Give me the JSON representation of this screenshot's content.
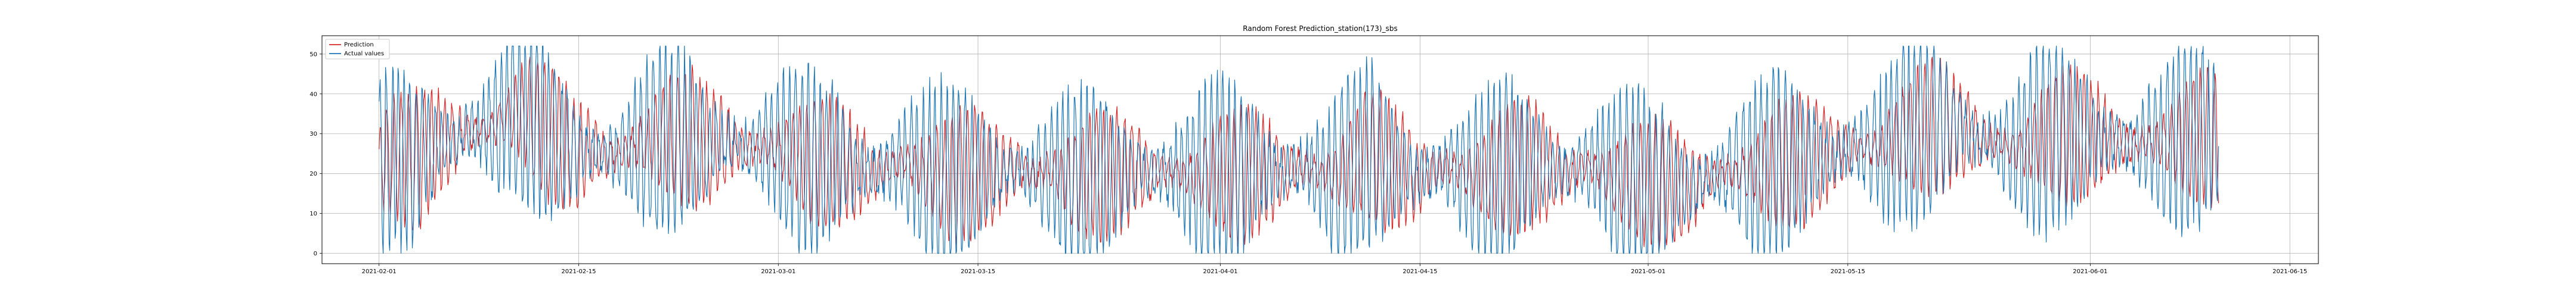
{
  "chart_data": {
    "type": "line",
    "title": "Random Forest Prediction_station(173)_sbs",
    "xlabel": "",
    "ylabel": "",
    "x_range": [
      "2021-01-28",
      "2021-06-17"
    ],
    "ylim": [
      -2.6,
      54.6
    ],
    "grid": true,
    "legend_position": "top-left",
    "x_ticks": [
      "2021-02-01",
      "2021-02-15",
      "2021-03-01",
      "2021-03-15",
      "2021-04-01",
      "2021-04-15",
      "2021-05-01",
      "2021-05-15",
      "2021-06-01",
      "2021-06-15"
    ],
    "y_ticks": [
      0,
      10,
      20,
      30,
      40,
      50
    ],
    "x_start": "2021-02-01",
    "x_end": "2021-06-10",
    "sample_interval_hours": 1,
    "series": [
      {
        "name": "Prediction",
        "color": "#d62728",
        "anchors": [
          [
            0,
            22
          ],
          [
            24,
            25
          ],
          [
            48,
            23
          ],
          [
            72,
            24
          ],
          [
            96,
            27
          ],
          [
            120,
            28
          ],
          [
            144,
            30
          ],
          [
            168,
            31
          ],
          [
            192,
            32
          ],
          [
            216,
            34
          ],
          [
            240,
            36
          ],
          [
            264,
            33
          ],
          [
            288,
            30
          ],
          [
            312,
            27
          ],
          [
            336,
            25
          ],
          [
            360,
            26
          ],
          [
            384,
            24
          ],
          [
            408,
            25
          ],
          [
            432,
            27
          ],
          [
            456,
            28
          ],
          [
            480,
            29
          ],
          [
            504,
            30
          ],
          [
            528,
            29
          ],
          [
            552,
            27
          ],
          [
            576,
            28
          ],
          [
            600,
            27
          ],
          [
            624,
            26
          ],
          [
            648,
            27
          ],
          [
            672,
            26
          ],
          [
            696,
            25
          ],
          [
            720,
            23
          ],
          [
            744,
            22
          ],
          [
            768,
            24
          ],
          [
            792,
            22
          ],
          [
            816,
            21
          ],
          [
            840,
            20
          ],
          [
            864,
            22
          ],
          [
            888,
            23
          ],
          [
            912,
            21
          ],
          [
            936,
            20
          ],
          [
            960,
            19
          ],
          [
            984,
            20
          ],
          [
            1008,
            21
          ],
          [
            1032,
            20
          ],
          [
            1056,
            21
          ],
          [
            1080,
            22
          ],
          [
            1104,
            20
          ],
          [
            1128,
            21
          ],
          [
            1152,
            19
          ],
          [
            1176,
            18
          ],
          [
            1200,
            20
          ],
          [
            1224,
            19
          ],
          [
            1248,
            20
          ],
          [
            1272,
            21
          ],
          [
            1296,
            20
          ],
          [
            1320,
            21
          ],
          [
            1344,
            20
          ],
          [
            1368,
            19
          ],
          [
            1392,
            20
          ],
          [
            1416,
            21
          ],
          [
            1440,
            19
          ],
          [
            1464,
            20
          ],
          [
            1488,
            21
          ],
          [
            1512,
            20
          ],
          [
            1536,
            21
          ],
          [
            1560,
            22
          ],
          [
            1584,
            20
          ],
          [
            1608,
            19
          ],
          [
            1632,
            22
          ],
          [
            1656,
            25
          ],
          [
            1680,
            24
          ],
          [
            1704,
            22
          ],
          [
            1728,
            20
          ],
          [
            1752,
            19
          ],
          [
            1776,
            21
          ],
          [
            1800,
            22
          ],
          [
            1824,
            20
          ],
          [
            1848,
            19
          ],
          [
            1872,
            20
          ],
          [
            1896,
            21
          ],
          [
            1920,
            22
          ],
          [
            1944,
            23
          ],
          [
            1968,
            21
          ],
          [
            1992,
            20
          ],
          [
            2016,
            21
          ],
          [
            2040,
            22
          ],
          [
            2064,
            20
          ],
          [
            2088,
            19
          ],
          [
            2112,
            18
          ],
          [
            2136,
            17
          ],
          [
            2160,
            18
          ],
          [
            2184,
            17
          ],
          [
            2208,
            16
          ],
          [
            2232,
            18
          ],
          [
            2256,
            20
          ],
          [
            2280,
            21
          ],
          [
            2304,
            20
          ],
          [
            2328,
            21
          ],
          [
            2352,
            22
          ],
          [
            2376,
            24
          ],
          [
            2400,
            23
          ],
          [
            2424,
            24
          ],
          [
            2448,
            25
          ],
          [
            2472,
            26
          ],
          [
            2496,
            27
          ],
          [
            2520,
            26
          ],
          [
            2544,
            28
          ],
          [
            2568,
            30
          ],
          [
            2592,
            31
          ],
          [
            2616,
            33
          ],
          [
            2640,
            32
          ],
          [
            2664,
            31
          ],
          [
            2688,
            29
          ],
          [
            2712,
            28
          ],
          [
            2736,
            27
          ],
          [
            2760,
            26
          ],
          [
            2784,
            28
          ],
          [
            2808,
            29
          ],
          [
            2832,
            30
          ],
          [
            2856,
            29
          ],
          [
            2880,
            30
          ],
          [
            2904,
            29
          ],
          [
            2928,
            28
          ],
          [
            2952,
            27
          ],
          [
            2976,
            28
          ],
          [
            3000,
            27
          ],
          [
            3024,
            28
          ],
          [
            3048,
            29
          ],
          [
            3072,
            30
          ],
          [
            3096,
            29
          ],
          [
            3120,
            28
          ],
          [
            3144,
            29
          ],
          [
            3168,
            30
          ],
          [
            3192,
            31
          ],
          [
            3216,
            30
          ],
          [
            3240,
            29
          ],
          [
            3264,
            28
          ],
          [
            3288,
            27
          ]
        ],
        "swing": [
          3,
          17
        ],
        "period_hours": [
          8,
          18
        ]
      },
      {
        "name": "Actual values",
        "color": "#1f77b4",
        "anchors": [
          [
            0,
            22
          ],
          [
            24,
            25
          ],
          [
            48,
            23
          ],
          [
            72,
            24
          ],
          [
            96,
            27
          ],
          [
            120,
            28
          ],
          [
            144,
            30
          ],
          [
            168,
            31
          ],
          [
            192,
            32
          ],
          [
            216,
            34
          ],
          [
            240,
            36
          ],
          [
            264,
            33
          ],
          [
            288,
            30
          ],
          [
            312,
            27
          ],
          [
            336,
            25
          ],
          [
            360,
            26
          ],
          [
            384,
            24
          ],
          [
            408,
            25
          ],
          [
            432,
            27
          ],
          [
            456,
            28
          ],
          [
            480,
            29
          ],
          [
            504,
            30
          ],
          [
            528,
            29
          ],
          [
            552,
            27
          ],
          [
            576,
            28
          ],
          [
            600,
            27
          ],
          [
            624,
            26
          ],
          [
            648,
            27
          ],
          [
            672,
            26
          ],
          [
            696,
            25
          ],
          [
            720,
            23
          ],
          [
            744,
            22
          ],
          [
            768,
            24
          ],
          [
            792,
            22
          ],
          [
            816,
            21
          ],
          [
            840,
            20
          ],
          [
            864,
            22
          ],
          [
            888,
            23
          ],
          [
            912,
            21
          ],
          [
            936,
            20
          ],
          [
            960,
            19
          ],
          [
            984,
            20
          ],
          [
            1008,
            21
          ],
          [
            1032,
            20
          ],
          [
            1056,
            21
          ],
          [
            1080,
            22
          ],
          [
            1104,
            20
          ],
          [
            1128,
            21
          ],
          [
            1152,
            19
          ],
          [
            1176,
            18
          ],
          [
            1200,
            20
          ],
          [
            1224,
            19
          ],
          [
            1248,
            20
          ],
          [
            1272,
            21
          ],
          [
            1296,
            20
          ],
          [
            1320,
            21
          ],
          [
            1344,
            20
          ],
          [
            1368,
            19
          ],
          [
            1392,
            20
          ],
          [
            1416,
            21
          ],
          [
            1440,
            19
          ],
          [
            1464,
            20
          ],
          [
            1488,
            21
          ],
          [
            1512,
            20
          ],
          [
            1536,
            21
          ],
          [
            1560,
            22
          ],
          [
            1584,
            20
          ],
          [
            1608,
            19
          ],
          [
            1632,
            22
          ],
          [
            1656,
            25
          ],
          [
            1680,
            24
          ],
          [
            1704,
            22
          ],
          [
            1728,
            20
          ],
          [
            1752,
            19
          ],
          [
            1776,
            21
          ],
          [
            1800,
            22
          ],
          [
            1824,
            20
          ],
          [
            1848,
            19
          ],
          [
            1872,
            20
          ],
          [
            1896,
            21
          ],
          [
            1920,
            22
          ],
          [
            1944,
            23
          ],
          [
            1968,
            21
          ],
          [
            1992,
            20
          ],
          [
            2016,
            21
          ],
          [
            2040,
            22
          ],
          [
            2064,
            20
          ],
          [
            2088,
            19
          ],
          [
            2112,
            18
          ],
          [
            2136,
            17
          ],
          [
            2160,
            18
          ],
          [
            2184,
            17
          ],
          [
            2208,
            16
          ],
          [
            2232,
            18
          ],
          [
            2256,
            20
          ],
          [
            2280,
            21
          ],
          [
            2304,
            20
          ],
          [
            2328,
            21
          ],
          [
            2352,
            22
          ],
          [
            2376,
            24
          ],
          [
            2400,
            23
          ],
          [
            2424,
            24
          ],
          [
            2448,
            25
          ],
          [
            2472,
            26
          ],
          [
            2496,
            27
          ],
          [
            2520,
            26
          ],
          [
            2544,
            28
          ],
          [
            2568,
            30
          ],
          [
            2592,
            31
          ],
          [
            2616,
            33
          ],
          [
            2640,
            32
          ],
          [
            2664,
            31
          ],
          [
            2688,
            29
          ],
          [
            2712,
            28
          ],
          [
            2736,
            27
          ],
          [
            2760,
            26
          ],
          [
            2784,
            28
          ],
          [
            2808,
            29
          ],
          [
            2832,
            30
          ],
          [
            2856,
            29
          ],
          [
            2880,
            30
          ],
          [
            2904,
            29
          ],
          [
            2928,
            28
          ],
          [
            2952,
            27
          ],
          [
            2976,
            28
          ],
          [
            3000,
            27
          ],
          [
            3024,
            28
          ],
          [
            3048,
            29
          ],
          [
            3072,
            30
          ],
          [
            3096,
            29
          ],
          [
            3120,
            28
          ],
          [
            3144,
            29
          ],
          [
            3168,
            30
          ],
          [
            3192,
            31
          ],
          [
            3216,
            30
          ],
          [
            3240,
            29
          ],
          [
            3264,
            28
          ],
          [
            3288,
            27
          ]
        ],
        "swing": [
          5,
          24
        ],
        "period_hours": [
          6,
          16
        ]
      }
    ]
  }
}
